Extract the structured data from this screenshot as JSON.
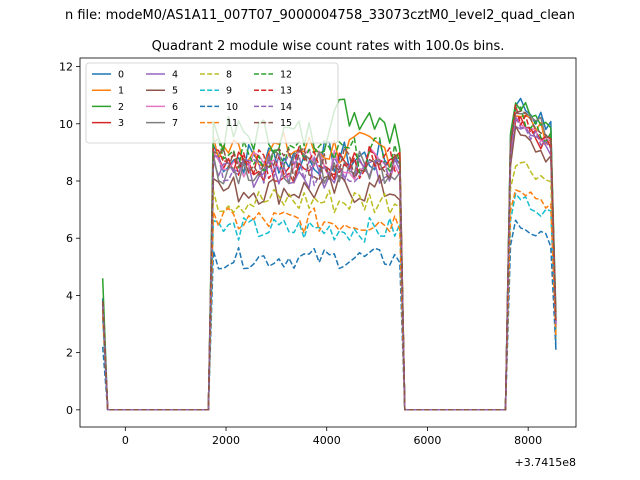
{
  "figure": {
    "suptitle": "n file: modeM0/AS1A11_007T07_9000004758_33073cztM0_level2_quad_clean",
    "offset_label": "+3.7415e8"
  },
  "chart_data": {
    "type": "line",
    "title": "Quadrant 2 module wise count rates with 100.0s bins.",
    "xlabel": "",
    "ylabel": "",
    "xlim": [
      -900,
      8950
    ],
    "ylim": [
      -0.6,
      12.3
    ],
    "x_ticks": [
      0,
      2000,
      4000,
      6000,
      8000
    ],
    "x_tick_labels": [
      "0",
      "2000",
      "4000",
      "6000",
      "8000"
    ],
    "y_ticks": [
      0,
      2,
      4,
      6,
      8,
      10,
      12
    ],
    "y_tick_labels": [
      "0",
      "2",
      "4",
      "6",
      "8",
      "10",
      "12"
    ],
    "grid": false,
    "legend": {
      "placement": "top-left",
      "ncol": 4
    },
    "segments": {
      "x_start": [
        -450,
        -350,
        1650,
        1750
      ],
      "x_flat": [
        -350,
        1650
      ],
      "x_mid": [
        1750,
        5450
      ],
      "x_mid_end": [
        5450,
        5550
      ],
      "x_flat2": [
        5550,
        7550
      ],
      "x_end": [
        7550,
        7650,
        8550
      ],
      "step": 100
    },
    "series": [
      {
        "name": "0",
        "color": "#1f77b4",
        "dash": "solid",
        "start": 3.9,
        "mid": 8.8,
        "end": 11.0,
        "tail": 2.1
      },
      {
        "name": "1",
        "color": "#ff7f0e",
        "dash": "solid",
        "start": 3.7,
        "mid": 9.1,
        "end": 10.6,
        "tail": 3.0
      },
      {
        "name": "2",
        "color": "#2ca02c",
        "dash": "solid",
        "start": 4.6,
        "mid": 9.6,
        "end": 11.1,
        "tail": 3.4
      },
      {
        "name": "3",
        "color": "#d62728",
        "dash": "solid",
        "start": 3.8,
        "mid": 8.5,
        "end": 10.2,
        "tail": 2.8
      },
      {
        "name": "4",
        "color": "#9467bd",
        "dash": "solid",
        "start": 3.6,
        "mid": 8.3,
        "end": 10.3,
        "tail": 2.9
      },
      {
        "name": "5",
        "color": "#8c564b",
        "dash": "solid",
        "start": 3.6,
        "mid": 7.7,
        "end": 9.8,
        "tail": 2.6
      },
      {
        "name": "6",
        "color": "#e377c2",
        "dash": "solid",
        "start": 3.7,
        "mid": 8.6,
        "end": 10.4,
        "tail": 3.0
      },
      {
        "name": "7",
        "color": "#7f7f7f",
        "dash": "solid",
        "start": 3.7,
        "mid": 8.5,
        "end": 10.8,
        "tail": 3.1
      },
      {
        "name": "8",
        "color": "#bcbd22",
        "dash": "dashed",
        "start": 3.5,
        "mid": 7.3,
        "end": 8.9,
        "tail": 2.7
      },
      {
        "name": "9",
        "color": "#17becf",
        "dash": "dashed",
        "start": 3.2,
        "mid": 6.3,
        "end": 7.6,
        "tail": 2.4
      },
      {
        "name": "10",
        "color": "#1f77b4",
        "dash": "dashed",
        "start": 2.2,
        "mid": 5.3,
        "end": 6.6,
        "tail": 2.1
      },
      {
        "name": "11",
        "color": "#ff7f0e",
        "dash": "dashed",
        "start": 3.3,
        "mid": 6.6,
        "end": 8.0,
        "tail": 2.5
      },
      {
        "name": "12",
        "color": "#2ca02c",
        "dash": "dashed",
        "start": 3.7,
        "mid": 8.9,
        "end": 10.6,
        "tail": 3.1
      },
      {
        "name": "13",
        "color": "#d62728",
        "dash": "dashed",
        "start": 3.8,
        "mid": 8.7,
        "end": 10.5,
        "tail": 3.0
      },
      {
        "name": "14",
        "color": "#9467bd",
        "dash": "dashed",
        "start": 3.7,
        "mid": 8.4,
        "end": 10.2,
        "tail": 3.0
      },
      {
        "name": "15",
        "color": "#8c564b",
        "dash": "dashed",
        "start": 3.8,
        "mid": 8.6,
        "end": 10.7,
        "tail": 3.2
      }
    ]
  }
}
